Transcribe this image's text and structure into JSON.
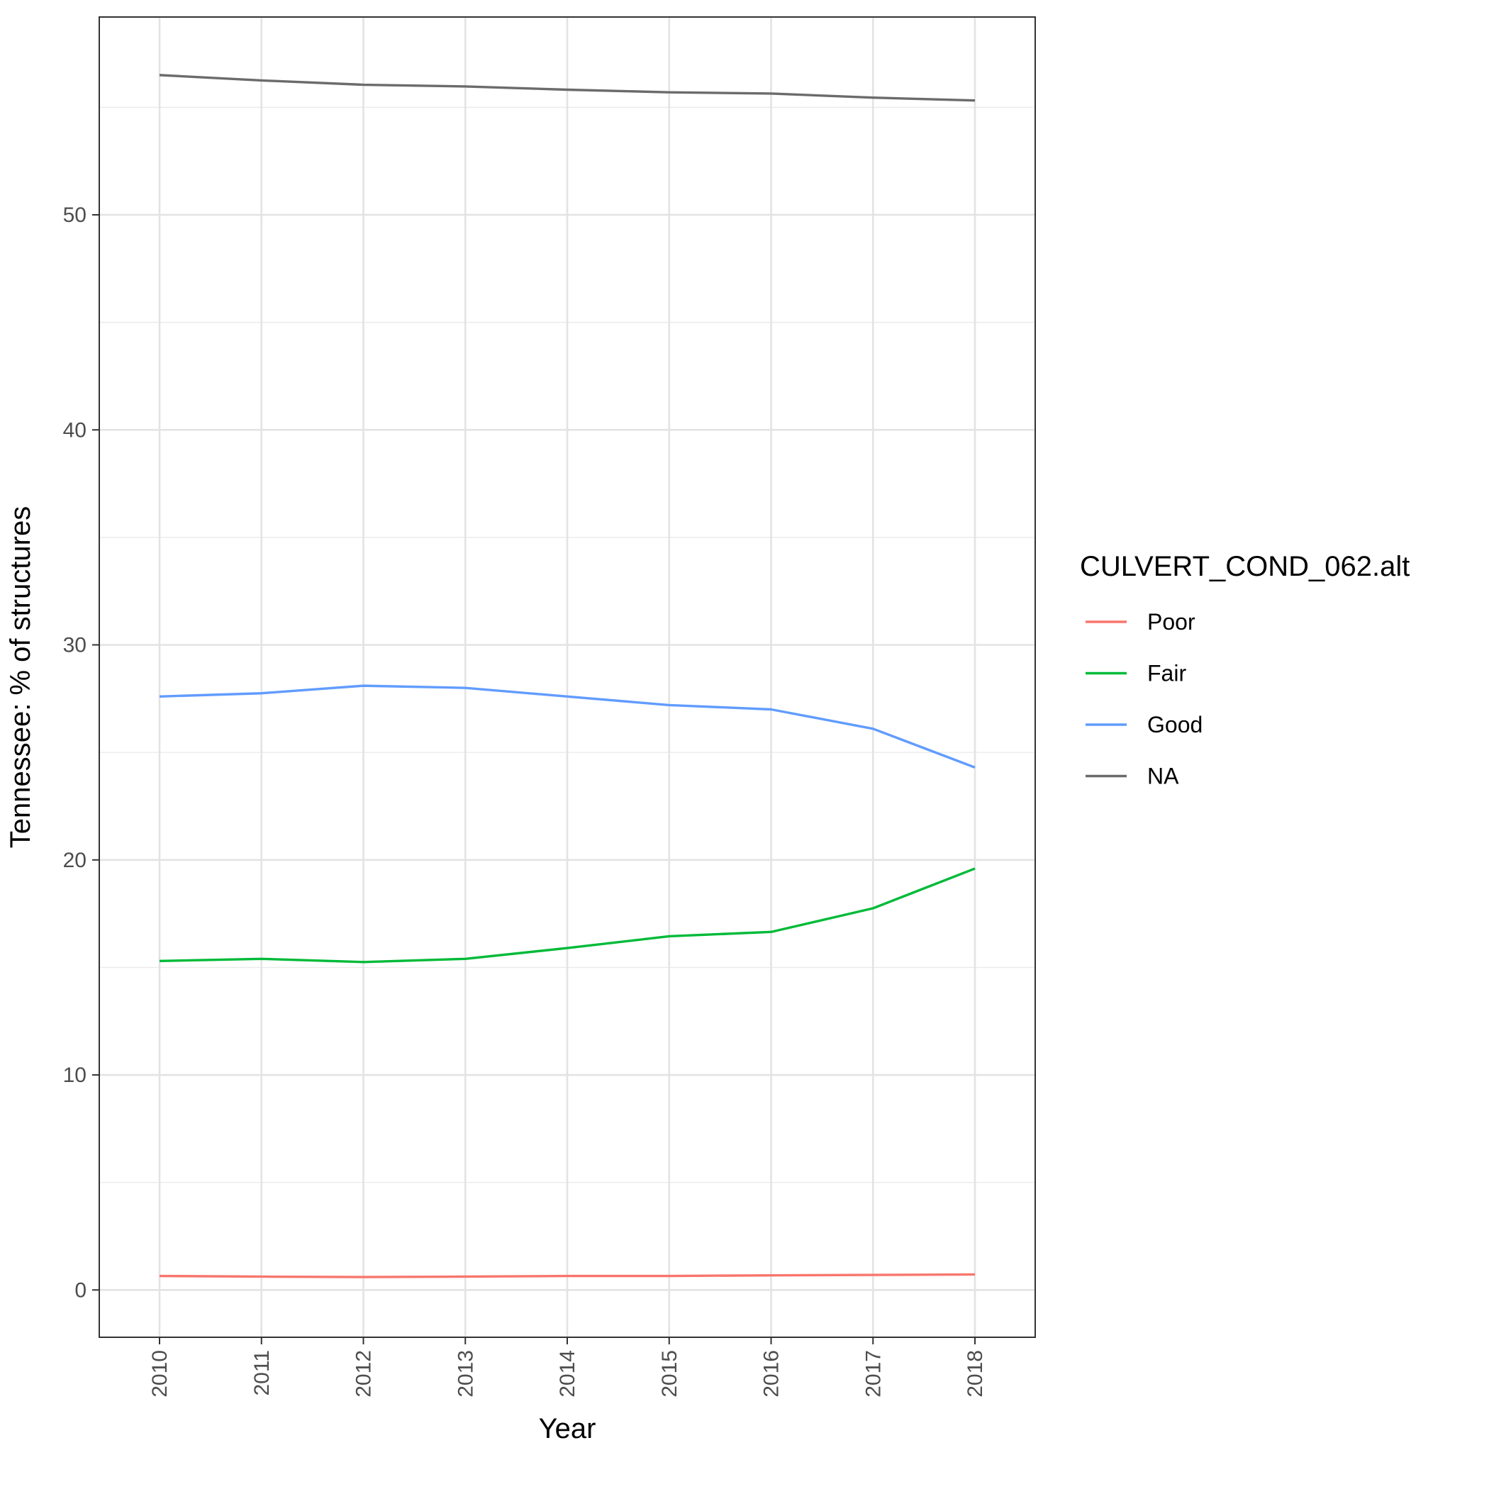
{
  "chart_data": {
    "type": "line",
    "title": "",
    "xlabel": "Year",
    "ylabel": "Tennessee: % of structures",
    "x": [
      "2010",
      "2011",
      "2012",
      "2013",
      "2014",
      "2015",
      "2016",
      "2017",
      "2018"
    ],
    "ylim": [
      -2.2,
      59.2
    ],
    "yticks": [
      0,
      10,
      20,
      30,
      40,
      50
    ],
    "grid": true,
    "legend": {
      "title": "CULVERT_COND_062.alt",
      "position": "right"
    },
    "series": [
      {
        "name": "Poor",
        "color": "#F8766D",
        "values": [
          0.65,
          0.62,
          0.6,
          0.62,
          0.65,
          0.65,
          0.68,
          0.7,
          0.72
        ]
      },
      {
        "name": "Fair",
        "color": "#00BA38",
        "values": [
          15.3,
          15.4,
          15.25,
          15.4,
          15.9,
          16.45,
          16.65,
          17.75,
          19.6
        ]
      },
      {
        "name": "Good",
        "color": "#619CFF",
        "values": [
          27.6,
          27.75,
          28.1,
          28.0,
          27.6,
          27.2,
          27.0,
          26.1,
          24.3
        ]
      },
      {
        "name": "NA",
        "color": "#6b6b6b",
        "values": [
          56.5,
          56.25,
          56.05,
          55.97,
          55.82,
          55.7,
          55.64,
          55.45,
          55.32
        ]
      }
    ]
  }
}
